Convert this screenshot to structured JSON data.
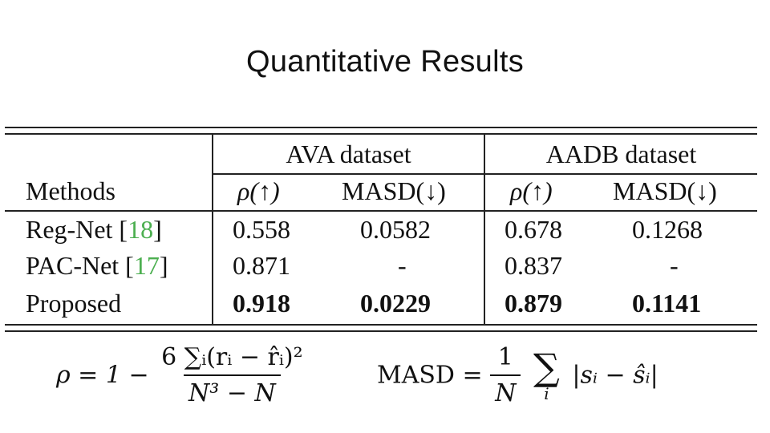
{
  "title": "Quantitative Results",
  "table": {
    "groups": [
      "AVA dataset",
      "AADB dataset"
    ],
    "method_header": "Methods",
    "metric_headers": [
      "ρ(↑)",
      "MASD(↓)",
      "ρ(↑)",
      "MASD(↓)"
    ],
    "rows": [
      {
        "name": "Reg-Net",
        "ref": "18",
        "values": [
          "0.558",
          "0.0582",
          "0.678",
          "0.1268"
        ]
      },
      {
        "name": "PAC-Net",
        "ref": "17",
        "values": [
          "0.871",
          "-",
          "0.837",
          "-"
        ]
      },
      {
        "name": "Proposed",
        "ref": "",
        "values": [
          "0.918",
          "0.0229",
          "0.879",
          "0.1141"
        ]
      }
    ]
  },
  "formulas": {
    "rho": {
      "lhs": "ρ = 1 −",
      "numerator": "6 ∑ᵢ(rᵢ − r̂ᵢ)²",
      "denominator": "N³ − N"
    },
    "masd": {
      "lhs": "MASD =",
      "numerator": "1",
      "denominator": "N",
      "sum": "∑",
      "sum_index": "i",
      "body": "|sᵢ − ŝᵢ|"
    }
  },
  "colors": {
    "reference": "#4caf50"
  }
}
